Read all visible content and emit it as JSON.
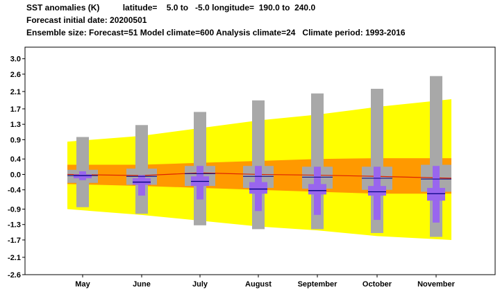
{
  "header": {
    "line1": "SST anomalies (K)          latitude=    5.0 to   -5.0 longitude=  190.0 to  240.0",
    "line2": "Forecast initial date: 20200501",
    "line3": "Ensemble size: Forecast=51 Model climate=600 Analysis climate=24   Climate period: 1993-2016"
  },
  "colors": {
    "outer_band": "#ffff00",
    "inner_band": "#ff9900",
    "climate_box": "#a8a8a8",
    "forecast_box": "#9966ee",
    "median": "#000080",
    "analysis_line": "#dd2200"
  },
  "chart_data": {
    "type": "box",
    "title": "SST anomalies (K)",
    "categories": [
      "May",
      "June",
      "July",
      "August",
      "September",
      "October",
      "November"
    ],
    "ylim": [
      -2.6,
      3.3
    ],
    "yticks": [
      "3.0",
      "2.6",
      "2.1",
      "1.7",
      "1.3",
      "0.9",
      "0.4",
      "0.0",
      "-0.4",
      "-0.9",
      "-1.3",
      "-1.7",
      "-2.1",
      "-2.6"
    ],
    "ytick_values": [
      3.0,
      2.6,
      2.15,
      1.7,
      1.3,
      0.9,
      0.4,
      0.0,
      -0.4,
      -0.9,
      -1.3,
      -1.7,
      -2.15,
      -2.6
    ],
    "bands": {
      "outer_upper": [
        0.85,
        1.0,
        1.2,
        1.4,
        1.55,
        1.75,
        1.95
      ],
      "outer_lower": [
        -0.9,
        -1.05,
        -1.2,
        -1.35,
        -1.45,
        -1.6,
        -1.7
      ],
      "inner_upper": [
        0.25,
        0.25,
        0.3,
        0.35,
        0.4,
        0.42,
        0.42
      ],
      "inner_lower": [
        -0.25,
        -0.3,
        -0.35,
        -0.4,
        -0.45,
        -0.5,
        -0.5
      ]
    },
    "analysis_climate_mean": [
      0.0,
      -0.03,
      0.04,
      0.0,
      -0.02,
      -0.05,
      -0.1
    ],
    "climate_boxes": [
      {
        "min": -0.85,
        "q1": -0.22,
        "median": -0.03,
        "q3": 0.12,
        "max": 0.97
      },
      {
        "min": -1.02,
        "q1": -0.27,
        "median": -0.05,
        "q3": 0.15,
        "max": 1.28
      },
      {
        "min": -1.32,
        "q1": -0.3,
        "median": 0.02,
        "q3": 0.22,
        "max": 1.62
      },
      {
        "min": -1.42,
        "q1": -0.35,
        "median": -0.05,
        "q3": 0.22,
        "max": 1.92
      },
      {
        "min": -1.42,
        "q1": -0.37,
        "median": -0.07,
        "q3": 0.2,
        "max": 2.1
      },
      {
        "min": -1.52,
        "q1": -0.4,
        "median": -0.1,
        "q3": 0.2,
        "max": 2.22
      },
      {
        "min": -1.62,
        "q1": -0.45,
        "median": -0.12,
        "q3": 0.25,
        "max": 2.55
      }
    ],
    "forecast_boxes": [
      {
        "min": -0.15,
        "q1": -0.1,
        "median": -0.03,
        "q3": 0.0,
        "max": 0.08
      },
      {
        "min": -0.55,
        "q1": -0.27,
        "median": -0.2,
        "q3": -0.1,
        "max": -0.02
      },
      {
        "min": -0.65,
        "q1": -0.3,
        "median": -0.18,
        "q3": -0.05,
        "max": 0.22
      },
      {
        "min": -0.95,
        "q1": -0.5,
        "median": -0.38,
        "q3": -0.2,
        "max": 0.22
      },
      {
        "min": -1.05,
        "q1": -0.52,
        "median": -0.42,
        "q3": -0.25,
        "max": 0.2
      },
      {
        "min": -1.18,
        "q1": -0.55,
        "median": -0.45,
        "q3": -0.3,
        "max": 0.2
      },
      {
        "min": -1.25,
        "q1": -0.68,
        "median": -0.5,
        "q3": -0.35,
        "max": 0.22
      }
    ]
  }
}
